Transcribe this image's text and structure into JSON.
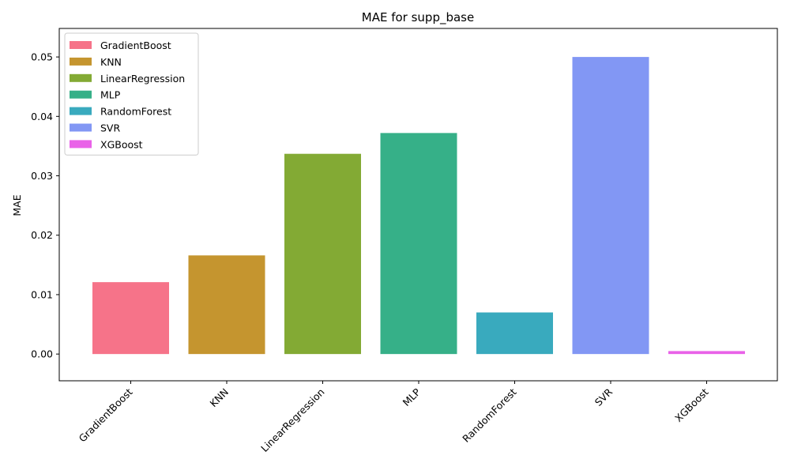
{
  "chart_data": {
    "type": "bar",
    "title": "MAE for supp_base",
    "xlabel": "",
    "ylabel": "MAE",
    "categories": [
      "GradientBoost",
      "KNN",
      "LinearRegression",
      "MLP",
      "RandomForest",
      "SVR",
      "XGBoost"
    ],
    "values": [
      0.0121,
      0.0166,
      0.0337,
      0.0372,
      0.007,
      0.05,
      0.0005
    ],
    "colors": [
      "#f67389",
      "#c5952f",
      "#83aa34",
      "#36b088",
      "#39aabe",
      "#8297f4",
      "#e962e8"
    ],
    "ylim": [
      -0.0045,
      0.0548
    ],
    "yticks": [
      0.0,
      0.01,
      0.02,
      0.03,
      0.04,
      0.05
    ],
    "ytick_labels": [
      "0.00",
      "0.01",
      "0.02",
      "0.03",
      "0.04",
      "0.05"
    ],
    "legend": {
      "position": "top-left",
      "entries": [
        "GradientBoost",
        "KNN",
        "LinearRegression",
        "MLP",
        "RandomForest",
        "SVR",
        "XGBoost"
      ]
    },
    "grid": false
  }
}
